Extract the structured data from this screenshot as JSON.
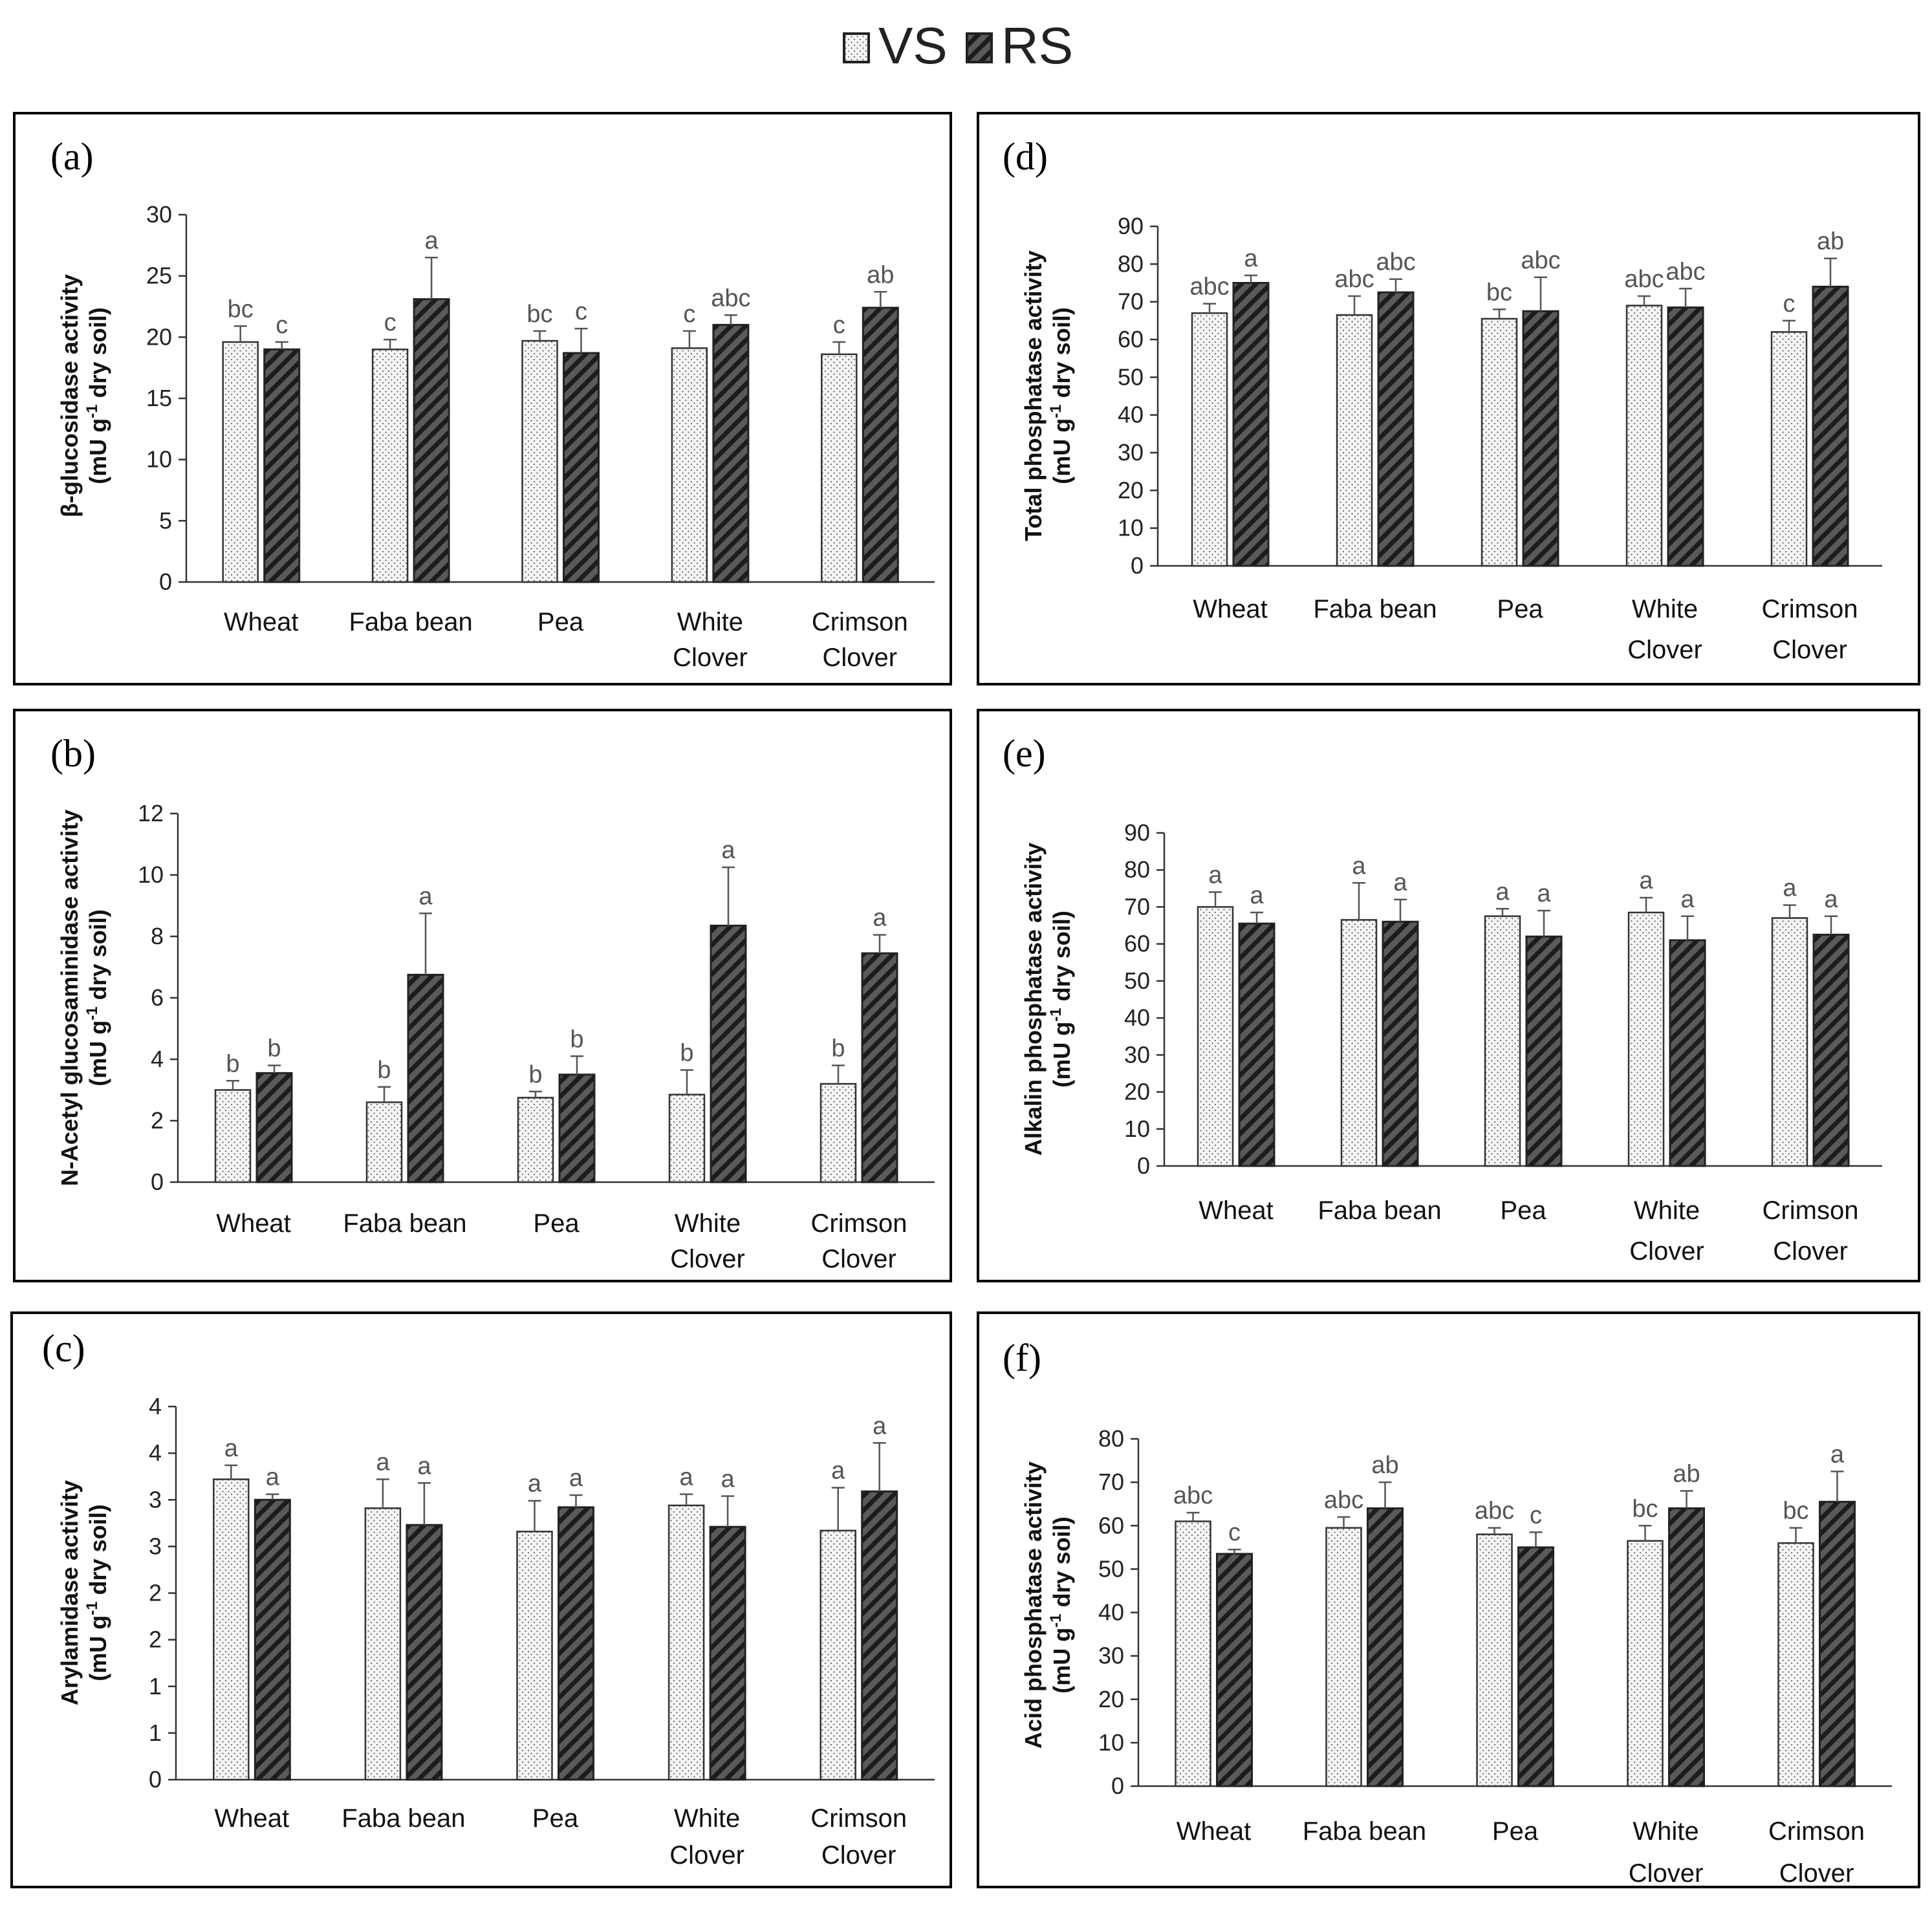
{
  "legend": [
    {
      "key": "VS",
      "label": "VS",
      "pattern": "dotted"
    },
    {
      "key": "RS",
      "label": "RS",
      "pattern": "hatched"
    }
  ],
  "colors": {
    "frame": "#000000",
    "vs_fill": "#f4f4f4",
    "rs_fill": "#555555",
    "rs_hatch": "#222222",
    "sig_text": "#555555"
  },
  "chart_data": [
    {
      "panel": "(a)",
      "type": "bar",
      "title": "",
      "ylabel": [
        "β-glucosidase activity",
        "(mU g",
        "-1",
        " dry soil)"
      ],
      "xlabel": "",
      "categories": [
        [
          "Wheat"
        ],
        [
          "Faba bean"
        ],
        [
          "Pea"
        ],
        [
          "White",
          "Clover"
        ],
        [
          "Crimson",
          "Clover"
        ]
      ],
      "ylim": [
        0,
        30
      ],
      "yticks": [
        0,
        5,
        10,
        15,
        20,
        25,
        30
      ],
      "ytick_labels": [
        "0",
        "5",
        "10",
        "15",
        "20",
        "25",
        "30"
      ],
      "series": [
        {
          "name": "VS",
          "values": [
            19.6,
            19.0,
            19.7,
            19.1,
            18.6
          ],
          "errors": [
            1.3,
            0.8,
            0.8,
            1.4,
            1.0
          ],
          "labels": [
            "bc",
            "c",
            "bc",
            "c",
            "c"
          ]
        },
        {
          "name": "RS",
          "values": [
            19.0,
            23.1,
            18.7,
            21.0,
            22.4
          ],
          "errors": [
            0.6,
            3.4,
            2.0,
            0.8,
            1.3
          ],
          "labels": [
            "c",
            "a",
            "c",
            "abc",
            "ab"
          ]
        }
      ]
    },
    {
      "panel": "(b)",
      "type": "bar",
      "title": "",
      "ylabel": [
        "N-Acetyl glucosaminidase activity",
        "(mU g",
        "-1",
        " dry soil)"
      ],
      "xlabel": "",
      "categories": [
        [
          "Wheat"
        ],
        [
          "Faba bean"
        ],
        [
          "Pea"
        ],
        [
          "White",
          "Clover"
        ],
        [
          "Crimson",
          "Clover"
        ]
      ],
      "ylim": [
        0,
        12
      ],
      "yticks": [
        0,
        2,
        4,
        6,
        8,
        10,
        12
      ],
      "ytick_labels": [
        "0",
        "2",
        "4",
        "6",
        "8",
        "10",
        "12"
      ],
      "series": [
        {
          "name": "VS",
          "values": [
            3.0,
            2.6,
            2.75,
            2.85,
            3.2
          ],
          "errors": [
            0.3,
            0.5,
            0.2,
            0.8,
            0.6
          ],
          "labels": [
            "b",
            "b",
            "b",
            "b",
            "b"
          ]
        },
        {
          "name": "RS",
          "values": [
            3.55,
            6.75,
            3.5,
            8.35,
            7.45
          ],
          "errors": [
            0.25,
            2.0,
            0.6,
            1.9,
            0.6
          ],
          "labels": [
            "b",
            "a",
            "b",
            "a",
            "a"
          ]
        }
      ]
    },
    {
      "panel": "(c)",
      "type": "bar",
      "title": "",
      "ylabel": [
        "Arylamidase activity",
        "(mU g",
        "-1",
        " dry soil)"
      ],
      "xlabel": "",
      "categories": [
        [
          "Wheat"
        ],
        [
          "Faba bean"
        ],
        [
          "Pea"
        ],
        [
          "White",
          "Clover"
        ],
        [
          "Crimson",
          "Clover"
        ]
      ],
      "ylim": [
        0,
        4
      ],
      "yticks": [
        0,
        0.5,
        1,
        1.5,
        2,
        2.5,
        3,
        3.5,
        4
      ],
      "ytick_labels": [
        "0",
        "1",
        "1",
        "2",
        "2",
        "3",
        "3",
        "4",
        "4"
      ],
      "series": [
        {
          "name": "VS",
          "values": [
            3.22,
            2.91,
            2.66,
            2.94,
            2.67
          ],
          "errors": [
            0.15,
            0.31,
            0.33,
            0.12,
            0.46
          ],
          "labels": [
            "a",
            "a",
            "a",
            "a",
            "a"
          ]
        },
        {
          "name": "RS",
          "values": [
            3.0,
            2.73,
            2.92,
            2.71,
            3.09
          ],
          "errors": [
            0.06,
            0.45,
            0.13,
            0.33,
            0.52
          ],
          "labels": [
            "a",
            "a",
            "a",
            "a",
            "a"
          ]
        }
      ]
    },
    {
      "panel": "(d)",
      "type": "bar",
      "title": "",
      "ylabel": [
        "Total phosphatase activity",
        "(mU g",
        "-1",
        " dry soil)"
      ],
      "xlabel": "",
      "categories": [
        [
          "Wheat"
        ],
        [
          "Faba bean"
        ],
        [
          "Pea"
        ],
        [
          "White",
          "Clover"
        ],
        [
          "Crimson",
          "Clover"
        ]
      ],
      "ylim": [
        0,
        90
      ],
      "yticks": [
        0,
        10,
        20,
        30,
        40,
        50,
        60,
        70,
        80,
        90
      ],
      "ytick_labels": [
        "0",
        "10",
        "20",
        "30",
        "40",
        "50",
        "60",
        "70",
        "80",
        "90"
      ],
      "series": [
        {
          "name": "VS",
          "values": [
            67,
            66.5,
            65.5,
            69,
            62
          ],
          "errors": [
            2.5,
            5.0,
            2.5,
            2.5,
            3.0
          ],
          "labels": [
            "abc",
            "abc",
            "bc",
            "abc",
            "c"
          ]
        },
        {
          "name": "RS",
          "values": [
            75,
            72.5,
            67.5,
            68.5,
            74
          ],
          "errors": [
            2.0,
            3.5,
            9.0,
            5.0,
            7.5
          ],
          "labels": [
            "a",
            "abc",
            "abc",
            "abc",
            "ab"
          ]
        }
      ]
    },
    {
      "panel": "(e)",
      "type": "bar",
      "title": "",
      "ylabel": [
        "Alkalin phosphatase activity",
        "(mU g",
        "-1",
        " dry soil)"
      ],
      "xlabel": "",
      "categories": [
        [
          "Wheat"
        ],
        [
          "Faba bean"
        ],
        [
          "Pea"
        ],
        [
          "White",
          "Clover"
        ],
        [
          "Crimson",
          "Clover"
        ]
      ],
      "ylim": [
        0,
        90
      ],
      "yticks": [
        0,
        10,
        20,
        30,
        40,
        50,
        60,
        70,
        80,
        90
      ],
      "ytick_labels": [
        "0",
        "10",
        "20",
        "30",
        "40",
        "50",
        "60",
        "70",
        "80",
        "90"
      ],
      "series": [
        {
          "name": "VS",
          "values": [
            70,
            66.5,
            67.5,
            68.5,
            67
          ],
          "errors": [
            4.0,
            10.0,
            2.0,
            4.0,
            3.5
          ],
          "labels": [
            "a",
            "a",
            "a",
            "a",
            "a"
          ]
        },
        {
          "name": "RS",
          "values": [
            65.5,
            66,
            62,
            61,
            62.5
          ],
          "errors": [
            3.0,
            6.0,
            7.0,
            6.5,
            5.0
          ],
          "labels": [
            "a",
            "a",
            "a",
            "a",
            "a"
          ]
        }
      ]
    },
    {
      "panel": "(f)",
      "type": "bar",
      "title": "",
      "ylabel": [
        "Acid phosphatase activity",
        "(mU g",
        "-1",
        " dry soil)"
      ],
      "xlabel": "",
      "categories": [
        [
          "Wheat"
        ],
        [
          "Faba bean"
        ],
        [
          "Pea"
        ],
        [
          "White",
          "Clover"
        ],
        [
          "Crimson",
          "Clover"
        ]
      ],
      "ylim": [
        0,
        80
      ],
      "yticks": [
        0,
        10,
        20,
        30,
        40,
        50,
        60,
        70,
        80
      ],
      "ytick_labels": [
        "0",
        "10",
        "20",
        "30",
        "40",
        "50",
        "60",
        "70",
        "80"
      ],
      "series": [
        {
          "name": "VS",
          "values": [
            61,
            59.5,
            58,
            56.5,
            56
          ],
          "errors": [
            2.0,
            2.5,
            1.5,
            3.5,
            3.5
          ],
          "labels": [
            "abc",
            "abc",
            "abc",
            "bc",
            "bc"
          ]
        },
        {
          "name": "RS",
          "values": [
            53.5,
            64,
            55,
            64,
            65.5
          ],
          "errors": [
            1.0,
            6.0,
            3.5,
            4.0,
            7.0
          ],
          "labels": [
            "c",
            "ab",
            "c",
            "ab",
            "a"
          ]
        }
      ]
    }
  ]
}
